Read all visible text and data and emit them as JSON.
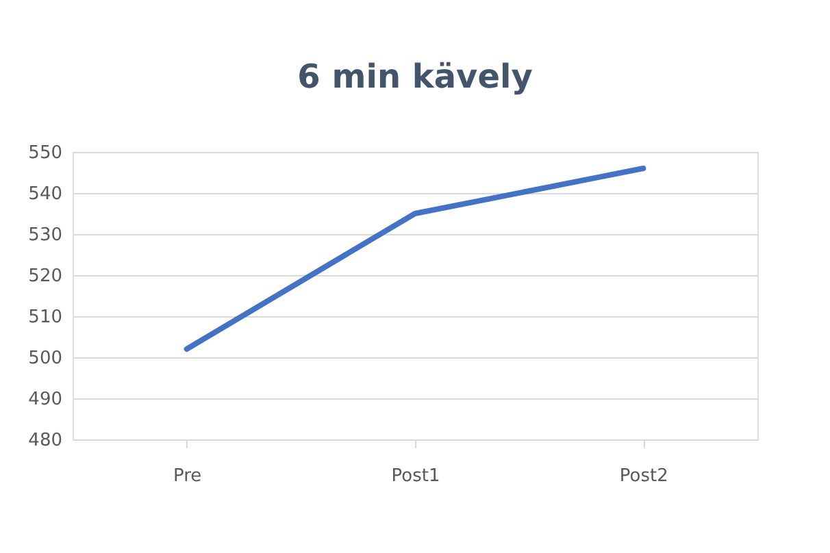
{
  "chart_data": {
    "type": "line",
    "title": "6 min kävely",
    "categories": [
      "Pre",
      "Post1",
      "Post2"
    ],
    "series": [
      {
        "color": "#4472c4",
        "values": [
          502,
          535,
          546
        ]
      }
    ],
    "ylim": [
      480,
      550
    ],
    "yticks": [
      480,
      490,
      500,
      510,
      520,
      530,
      540,
      550
    ],
    "grid": "y",
    "marker": "none",
    "line_style": "solid"
  }
}
